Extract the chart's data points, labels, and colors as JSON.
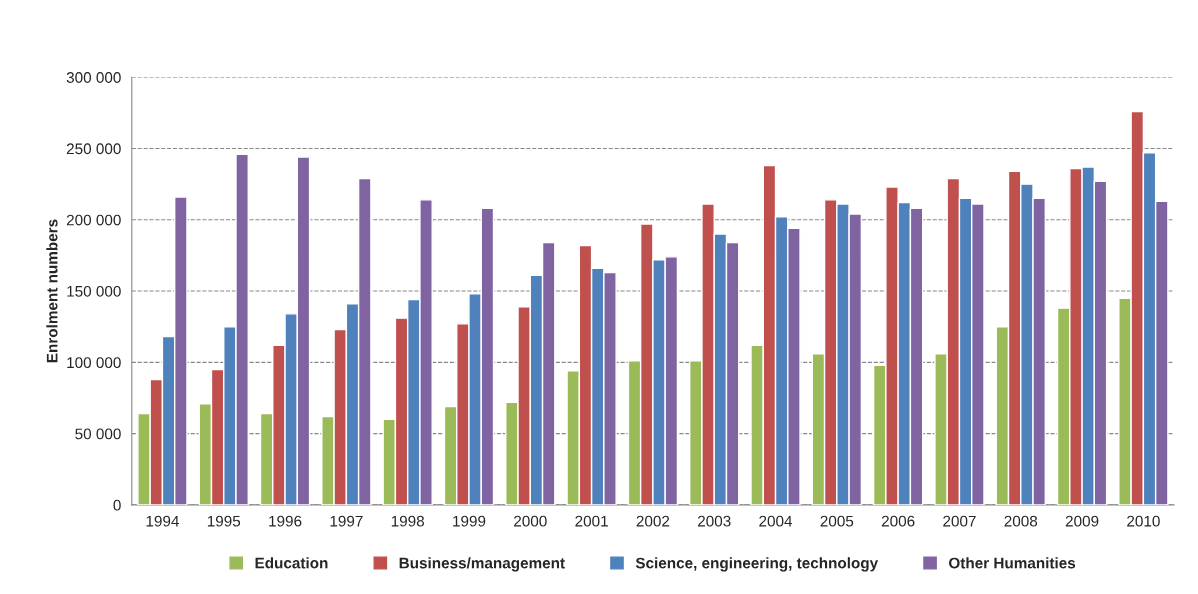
{
  "chart_data": {
    "type": "bar",
    "ylabel": "Enrolment numbers",
    "categories": [
      "1994",
      "1995",
      "1996",
      "1997",
      "1998",
      "1999",
      "2000",
      "2001",
      "2002",
      "2003",
      "2004",
      "2005",
      "2006",
      "2007",
      "2008",
      "2009",
      "2010"
    ],
    "series": [
      {
        "name": "Education",
        "color": "#9bbb59",
        "values": [
          64000,
          71000,
          64000,
          62000,
          60000,
          69000,
          72000,
          94000,
          101000,
          101000,
          112000,
          106000,
          98000,
          106000,
          125000,
          138000,
          145000
        ]
      },
      {
        "name": "Business/management",
        "color": "#c0504d",
        "values": [
          88000,
          95000,
          112000,
          123000,
          131000,
          127000,
          139000,
          182000,
          197000,
          211000,
          238000,
          214000,
          223000,
          229000,
          234000,
          236000,
          276000
        ]
      },
      {
        "name": "Science, engineering, technology",
        "color": "#4f81bd",
        "values": [
          118000,
          125000,
          134000,
          141000,
          144000,
          148000,
          161000,
          166000,
          172000,
          190000,
          202000,
          211000,
          212000,
          215000,
          225000,
          237000,
          247000
        ]
      },
      {
        "name": "Other Humanities",
        "color": "#8064a2",
        "values": [
          216000,
          246000,
          244000,
          229000,
          214000,
          208000,
          184000,
          163000,
          174000,
          184000,
          194000,
          204000,
          208000,
          211000,
          215000,
          227000,
          213000
        ]
      }
    ],
    "ylim": [
      0,
      300000
    ],
    "yticks": [
      0,
      {
        "value": 50000,
        "label": "50 000"
      },
      {
        "value": 100000,
        "label": "100 000"
      },
      {
        "value": 150000,
        "label": "150 000"
      },
      {
        "value": 200000,
        "label": "200 000"
      },
      {
        "value": 250000,
        "label": "250 000"
      },
      {
        "value": 300000,
        "label": "300 000"
      }
    ],
    "grid": "y",
    "legend": "bottom"
  }
}
